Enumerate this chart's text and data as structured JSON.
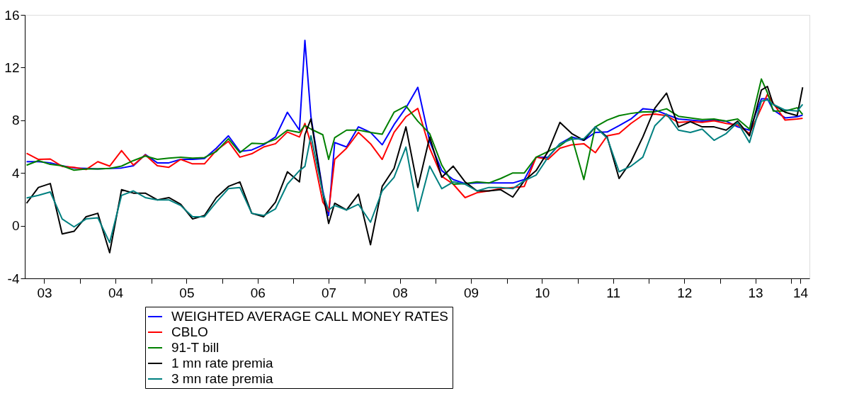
{
  "chart_data": {
    "type": "line",
    "legend": "bottom",
    "grid": false,
    "x": [
      "2003-04",
      "2003-06",
      "2003-08",
      "2003-10",
      "2003-12",
      "2004-02",
      "2004-04",
      "2004-06",
      "2004-08",
      "2004-10",
      "2004-12",
      "2005-02",
      "2005-04",
      "2005-06",
      "2005-08",
      "2005-10",
      "2005-12",
      "2006-02",
      "2006-04",
      "2006-06",
      "2006-08",
      "2006-10",
      "2006-12",
      "2007-02",
      "2007-03",
      "2007-04",
      "2007-06",
      "2007-07",
      "2007-08",
      "2007-10",
      "2007-12",
      "2008-02",
      "2008-04",
      "2008-06",
      "2008-08",
      "2008-10",
      "2008-12",
      "2009-02",
      "2009-04",
      "2009-06",
      "2009-08",
      "2009-10",
      "2009-12",
      "2010-02",
      "2010-04",
      "2010-06",
      "2010-08",
      "2010-10",
      "2010-12",
      "2011-02",
      "2011-04",
      "2011-06",
      "2011-08",
      "2011-10",
      "2011-12",
      "2012-02",
      "2012-04",
      "2012-06",
      "2012-08",
      "2012-10",
      "2012-12",
      "2013-02",
      "2013-04",
      "2013-06",
      "2013-08",
      "2013-09",
      "2013-10",
      "2013-12",
      "2014-02",
      "2014-03"
    ],
    "xlim": [
      "2003-03-23",
      "2014-04-05"
    ],
    "xticks": [
      {
        "value": "2003-07-01",
        "label": "03"
      },
      {
        "value": "2004-01-01",
        "label": null
      },
      {
        "value": "2004-07-01",
        "label": "04"
      },
      {
        "value": "2005-01-01",
        "label": null
      },
      {
        "value": "2005-07-01",
        "label": "05"
      },
      {
        "value": "2006-01-01",
        "label": null
      },
      {
        "value": "2006-07-01",
        "label": "06"
      },
      {
        "value": "2007-01-01",
        "label": null
      },
      {
        "value": "2007-07-01",
        "label": "07"
      },
      {
        "value": "2008-01-01",
        "label": null
      },
      {
        "value": "2008-07-01",
        "label": "08"
      },
      {
        "value": "2009-01-01",
        "label": null
      },
      {
        "value": "2009-07-01",
        "label": "09"
      },
      {
        "value": "2010-01-01",
        "label": null
      },
      {
        "value": "2010-07-01",
        "label": "10"
      },
      {
        "value": "2011-01-01",
        "label": null
      },
      {
        "value": "2011-07-01",
        "label": "11"
      },
      {
        "value": "2012-01-01",
        "label": null
      },
      {
        "value": "2012-07-01",
        "label": "12"
      },
      {
        "value": "2013-01-01",
        "label": null
      },
      {
        "value": "2013-07-01",
        "label": "13"
      },
      {
        "value": "2014-01-01",
        "label": null
      },
      {
        "value": "2014-02-17",
        "label": "14"
      }
    ],
    "ylim": [
      -4,
      16
    ],
    "yticks": [
      -4,
      0,
      4,
      8,
      12,
      16
    ],
    "series": [
      {
        "name": "WEIGHTED AVERAGE CALL MONEY RATES",
        "color": "#0000ff",
        "values": [
          4.86,
          4.86,
          4.77,
          4.55,
          4.38,
          4.35,
          4.3,
          4.35,
          4.38,
          4.55,
          5.4,
          4.77,
          4.77,
          5.03,
          5.03,
          5.1,
          5.88,
          6.82,
          5.63,
          5.75,
          6.14,
          6.73,
          8.61,
          7.25,
          14.07,
          8.27,
          2.64,
          0.77,
          6.31,
          5.97,
          7.5,
          7.08,
          6.14,
          7.67,
          8.95,
          10.5,
          6.4,
          4.18,
          3.5,
          3.19,
          3.24,
          3.24,
          3.24,
          3.24,
          3.5,
          5.2,
          5.2,
          6.22,
          6.73,
          6.48,
          7.08,
          7.11,
          7.59,
          8.1,
          8.87,
          8.78,
          8.44,
          8.1,
          8.01,
          7.93,
          8.01,
          7.93,
          7.5,
          7.25,
          9.63,
          9.63,
          8.78,
          8.18,
          8.27,
          8.39
        ]
      },
      {
        "name": "CBLO",
        "color": "#ff0000",
        "values": [
          5.5,
          5.03,
          5.06,
          4.5,
          4.43,
          4.26,
          4.86,
          4.52,
          5.7,
          4.6,
          5.37,
          4.55,
          4.43,
          5.03,
          4.69,
          4.69,
          5.71,
          6.4,
          5.2,
          5.46,
          5.97,
          6.22,
          7.11,
          6.73,
          7.76,
          6.22,
          1.79,
          1.1,
          5.03,
          5.88,
          7.08,
          6.22,
          5.03,
          7.08,
          8.27,
          8.9,
          5.88,
          3.75,
          3.15,
          2.13,
          2.5,
          2.64,
          2.81,
          2.9,
          2.98,
          5.2,
          5.03,
          5.88,
          6.14,
          6.22,
          5.54,
          6.82,
          6.99,
          7.76,
          8.39,
          8.47,
          8.35,
          7.84,
          7.89,
          7.84,
          7.96,
          7.76,
          7.64,
          6.99,
          8.95,
          9.97,
          9.29,
          8.01,
          8.1,
          8.15
        ]
      },
      {
        "name": "91-T bill",
        "color": "#008000",
        "values": [
          4.59,
          4.94,
          4.65,
          4.55,
          4.21,
          4.3,
          4.3,
          4.35,
          4.52,
          4.94,
          5.29,
          5.03,
          5.12,
          5.2,
          5.12,
          5.17,
          5.63,
          6.6,
          5.54,
          6.26,
          6.22,
          6.56,
          7.25,
          7.08,
          7.6,
          7.33,
          6.9,
          5.03,
          6.68,
          7.25,
          7.25,
          7.08,
          6.94,
          8.61,
          9.09,
          7.93,
          6.99,
          4.6,
          3.15,
          3.19,
          3.32,
          3.24,
          3.58,
          4.0,
          4.0,
          5.2,
          5.63,
          6.05,
          6.73,
          3.5,
          7.5,
          8.01,
          8.35,
          8.52,
          8.64,
          8.64,
          8.87,
          8.3,
          8.18,
          8.06,
          8.1,
          7.93,
          8.1,
          7.33,
          11.13,
          10.1,
          8.7,
          8.7,
          8.95,
          8.44
        ]
      },
      {
        "name": "1 mn rate premia",
        "color": "#000000",
        "values": [
          1.7,
          2.9,
          3.2,
          -0.63,
          -0.43,
          0.68,
          0.94,
          -2.05,
          2.73,
          2.47,
          2.47,
          1.96,
          2.13,
          1.62,
          0.51,
          0.77,
          2.13,
          2.98,
          3.32,
          0.94,
          0.68,
          1.79,
          4.09,
          3.32,
          6.9,
          8.1,
          2.47,
          0.17,
          1.7,
          1.19,
          2.39,
          -1.45,
          2.98,
          4.35,
          7.5,
          2.9,
          6.73,
          3.67,
          4.52,
          3.32,
          2.64,
          2.64,
          2.73,
          2.17,
          3.41,
          4.18,
          5.63,
          7.84,
          6.99,
          6.48,
          7.5,
          6.73,
          3.58,
          4.86,
          6.73,
          8.92,
          10.06,
          7.5,
          7.89,
          7.5,
          7.5,
          7.25,
          7.93,
          6.82,
          10.3,
          10.57,
          9.2,
          8.61,
          8.35,
          10.5
        ]
      },
      {
        "name": "3 mn rate premia",
        "color": "#008080",
        "values": [
          2.1,
          2.3,
          2.56,
          0.51,
          -0.09,
          0.51,
          0.6,
          -1.28,
          2.3,
          2.64,
          2.13,
          1.96,
          1.96,
          1.53,
          0.68,
          0.68,
          1.79,
          2.81,
          2.9,
          0.94,
          0.77,
          1.28,
          3.15,
          4.18,
          4.5,
          6.82,
          2.47,
          1.19,
          1.53,
          1.19,
          1.62,
          0.26,
          2.64,
          3.67,
          5.97,
          1.1,
          4.52,
          2.81,
          3.32,
          3.15,
          2.64,
          2.9,
          2.9,
          2.81,
          3.41,
          3.84,
          5.2,
          6.22,
          6.56,
          6.6,
          7.5,
          6.65,
          4.09,
          4.52,
          5.2,
          7.59,
          8.47,
          7.25,
          7.08,
          7.33,
          6.48,
          6.99,
          7.84,
          6.31,
          9.46,
          9.55,
          9.2,
          8.78,
          8.7,
          9.2
        ]
      }
    ]
  }
}
